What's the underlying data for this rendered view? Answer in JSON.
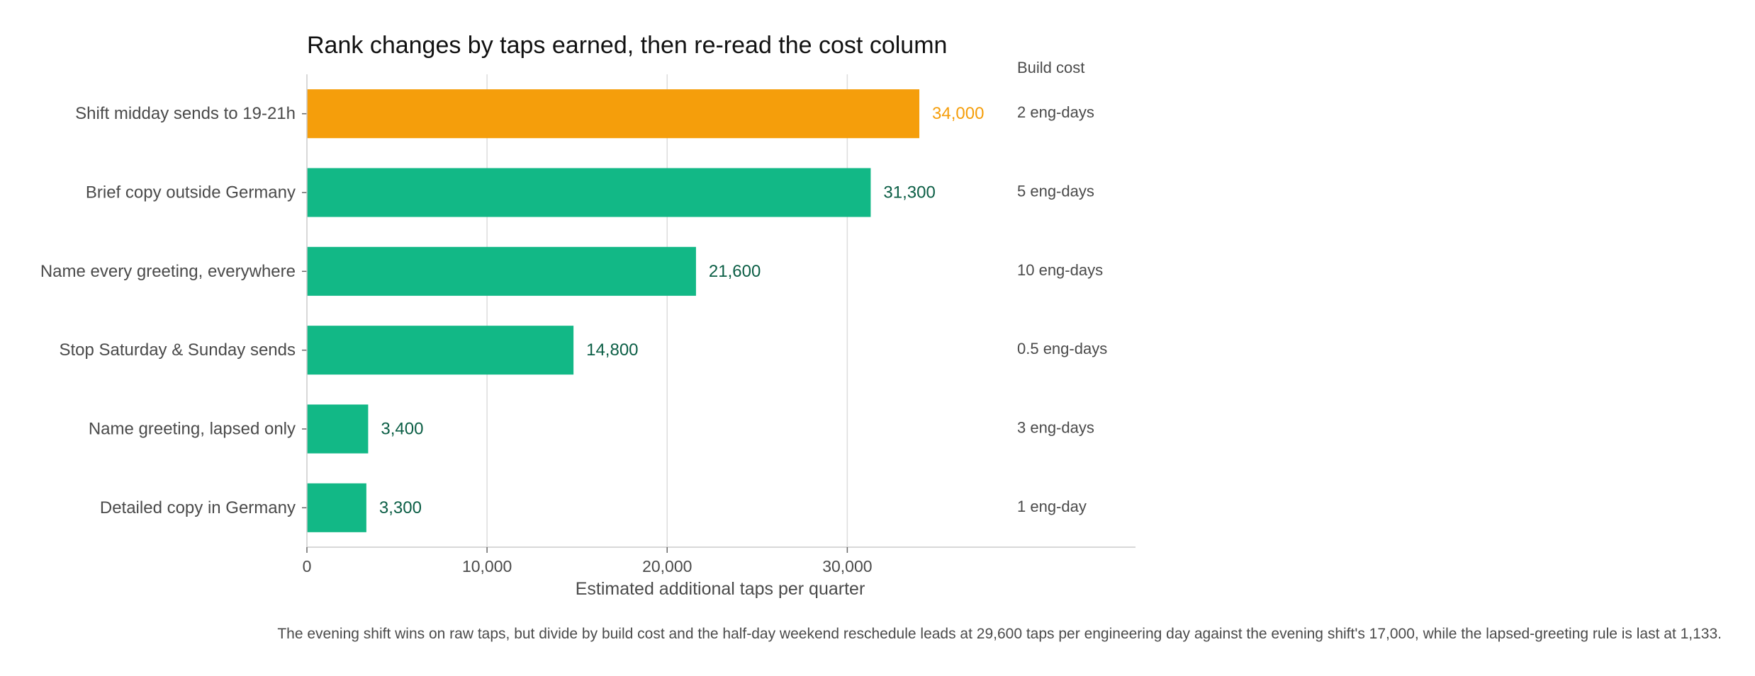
{
  "chart_data": {
    "type": "bar",
    "orientation": "horizontal",
    "title": "Rank changes by taps earned, then re-read the cost column",
    "xlabel": "Estimated additional taps per quarter",
    "ylabel": "",
    "xlim": [
      0,
      46000
    ],
    "xticks": [
      0,
      10000,
      20000,
      30000
    ],
    "xtick_labels": [
      "0",
      "10,000",
      "20,000",
      "30,000"
    ],
    "grid": "vertical",
    "categories": [
      "Shift midday sends to 19-21h",
      "Brief copy outside Germany",
      "Name every greeting, everywhere",
      "Stop Saturday & Sunday sends",
      "Name greeting, lapsed only",
      "Detailed copy in Germany"
    ],
    "values": [
      34000,
      31300,
      21600,
      14800,
      3400,
      3300
    ],
    "value_labels": [
      "34,000",
      "31,300",
      "21,600",
      "14,800",
      "3,400",
      "3,300"
    ],
    "highlight_index": 0,
    "colors": {
      "highlight_bar": "#F59E0B",
      "highlight_label": "#F59E0B",
      "bar": "#12B886",
      "label": "#0B5E45",
      "grid": "#dddddd",
      "axis": "#cccccc"
    },
    "cost_column": {
      "header": "Build cost",
      "values": [
        "2 eng-days",
        "5 eng-days",
        "10 eng-days",
        "0.5 eng-days",
        "3 eng-days",
        "1 eng-day"
      ]
    },
    "note": "The evening shift wins on raw taps, but divide by build cost and the half-day weekend reschedule leads at 29,600 taps per engineering day against the evening shift's 17,000, while the lapsed-greeting rule is last at 1,133."
  }
}
